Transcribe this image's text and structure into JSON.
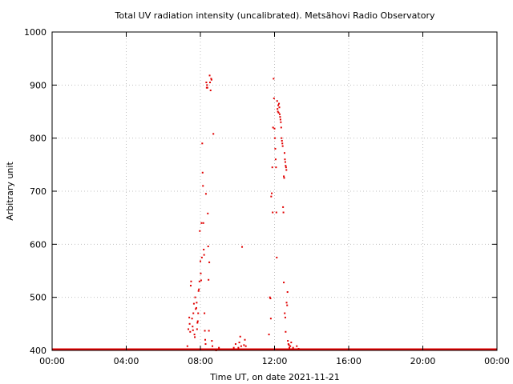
{
  "chart_data": {
    "type": "scatter",
    "title": "Total UV radiation intensity (uncalibrated). Metsähovi Radio Observatory",
    "xlabel": "Time UT, on date 2021-11-21",
    "ylabel": "Arbitrary unit",
    "xlim": [
      0,
      24
    ],
    "ylim": [
      400,
      1000
    ],
    "xticks": [
      {
        "value": 0,
        "label": "00:00"
      },
      {
        "value": 4,
        "label": "04:00"
      },
      {
        "value": 8,
        "label": "08:00"
      },
      {
        "value": 12,
        "label": "12:00"
      },
      {
        "value": 16,
        "label": "16:00"
      },
      {
        "value": 20,
        "label": "20:00"
      },
      {
        "value": 24,
        "label": "00:00"
      }
    ],
    "yticks": [
      {
        "value": 400,
        "label": "400"
      },
      {
        "value": 500,
        "label": "500"
      },
      {
        "value": 600,
        "label": "600"
      },
      {
        "value": 700,
        "label": "700"
      },
      {
        "value": 800,
        "label": "800"
      },
      {
        "value": 900,
        "label": "900"
      },
      {
        "value": 1000,
        "label": "1000"
      }
    ],
    "grid": true,
    "color": "#e00000",
    "baseline": {
      "value": 400,
      "x_range": [
        0,
        24
      ]
    },
    "points": [
      [
        7.2,
        402
      ],
      [
        7.3,
        408
      ],
      [
        7.35,
        440
      ],
      [
        7.4,
        462
      ],
      [
        7.42,
        450
      ],
      [
        7.45,
        435
      ],
      [
        7.5,
        530
      ],
      [
        7.48,
        522
      ],
      [
        7.55,
        460
      ],
      [
        7.58,
        445
      ],
      [
        7.6,
        438
      ],
      [
        7.62,
        470
      ],
      [
        7.65,
        488
      ],
      [
        7.68,
        430
      ],
      [
        7.7,
        425
      ],
      [
        7.72,
        500
      ],
      [
        7.75,
        478
      ],
      [
        7.78,
        480
      ],
      [
        7.8,
        490
      ],
      [
        7.82,
        440
      ],
      [
        7.84,
        452
      ],
      [
        7.86,
        455
      ],
      [
        7.88,
        470
      ],
      [
        7.9,
        512
      ],
      [
        7.92,
        515
      ],
      [
        7.95,
        530
      ],
      [
        7.97,
        625
      ],
      [
        8.0,
        568
      ],
      [
        8.02,
        545
      ],
      [
        8.04,
        532
      ],
      [
        8.06,
        640
      ],
      [
        8.08,
        575
      ],
      [
        8.1,
        790
      ],
      [
        8.12,
        735
      ],
      [
        8.14,
        710
      ],
      [
        8.16,
        640
      ],
      [
        8.18,
        590
      ],
      [
        8.2,
        580
      ],
      [
        8.22,
        470
      ],
      [
        8.24,
        437
      ],
      [
        8.26,
        420
      ],
      [
        8.28,
        412
      ],
      [
        8.3,
        695
      ],
      [
        8.32,
        905
      ],
      [
        8.34,
        895
      ],
      [
        8.36,
        900
      ],
      [
        8.38,
        895
      ],
      [
        8.4,
        658
      ],
      [
        8.42,
        596
      ],
      [
        8.44,
        533
      ],
      [
        8.46,
        437
      ],
      [
        8.48,
        566
      ],
      [
        8.5,
        918
      ],
      [
        8.52,
        905
      ],
      [
        8.55,
        890
      ],
      [
        8.58,
        912
      ],
      [
        8.6,
        910
      ],
      [
        8.62,
        418
      ],
      [
        8.65,
        408
      ],
      [
        8.7,
        808
      ],
      [
        8.75,
        402
      ],
      [
        8.85,
        400
      ],
      [
        9.0,
        405
      ],
      [
        9.2,
        402
      ],
      [
        9.4,
        401
      ],
      [
        9.6,
        402
      ],
      [
        9.8,
        405
      ],
      [
        9.9,
        412
      ],
      [
        10.0,
        402
      ],
      [
        10.05,
        405
      ],
      [
        10.1,
        415
      ],
      [
        10.15,
        426
      ],
      [
        10.2,
        408
      ],
      [
        10.25,
        595
      ],
      [
        10.3,
        402
      ],
      [
        10.35,
        410
      ],
      [
        10.4,
        420
      ],
      [
        10.45,
        408
      ],
      [
        10.5,
        402
      ],
      [
        11.7,
        430
      ],
      [
        11.75,
        500
      ],
      [
        11.78,
        498
      ],
      [
        11.8,
        460
      ],
      [
        11.82,
        690
      ],
      [
        11.85,
        696
      ],
      [
        11.88,
        745
      ],
      [
        11.9,
        660
      ],
      [
        11.92,
        820
      ],
      [
        11.95,
        912
      ],
      [
        11.97,
        875
      ],
      [
        12.0,
        818
      ],
      [
        12.02,
        800
      ],
      [
        12.04,
        780
      ],
      [
        12.06,
        760
      ],
      [
        12.08,
        745
      ],
      [
        12.1,
        660
      ],
      [
        12.12,
        575
      ],
      [
        12.14,
        870
      ],
      [
        12.16,
        855
      ],
      [
        12.18,
        850
      ],
      [
        12.2,
        862
      ],
      [
        12.22,
        848
      ],
      [
        12.24,
        865
      ],
      [
        12.26,
        858
      ],
      [
        12.28,
        845
      ],
      [
        12.3,
        840
      ],
      [
        12.32,
        835
      ],
      [
        12.34,
        830
      ],
      [
        12.36,
        820
      ],
      [
        12.38,
        800
      ],
      [
        12.4,
        795
      ],
      [
        12.42,
        790
      ],
      [
        12.44,
        785
      ],
      [
        12.46,
        670
      ],
      [
        12.48,
        660
      ],
      [
        12.5,
        728
      ],
      [
        12.52,
        725
      ],
      [
        12.54,
        772
      ],
      [
        12.56,
        760
      ],
      [
        12.58,
        755
      ],
      [
        12.6,
        748
      ],
      [
        12.62,
        745
      ],
      [
        12.64,
        740
      ],
      [
        12.5,
        528
      ],
      [
        12.55,
        470
      ],
      [
        12.58,
        462
      ],
      [
        12.6,
        435
      ],
      [
        12.65,
        490
      ],
      [
        12.68,
        485
      ],
      [
        12.7,
        510
      ],
      [
        12.72,
        418
      ],
      [
        12.75,
        412
      ],
      [
        12.78,
        410
      ],
      [
        12.8,
        405
      ],
      [
        12.85,
        408
      ],
      [
        12.9,
        415
      ],
      [
        12.95,
        402
      ],
      [
        13.0,
        405
      ],
      [
        13.1,
        402
      ],
      [
        13.2,
        408
      ],
      [
        13.3,
        403
      ]
    ]
  }
}
